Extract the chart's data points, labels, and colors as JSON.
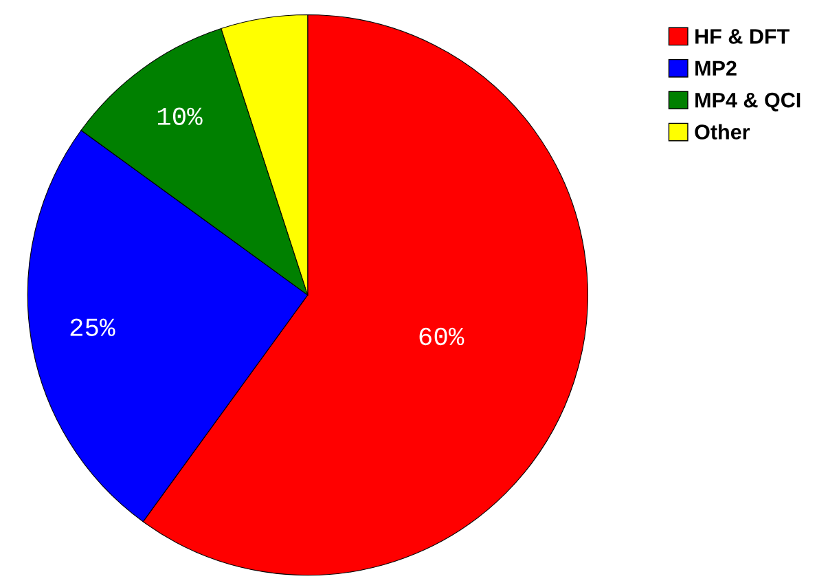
{
  "chart_data": {
    "type": "pie",
    "categories": [
      "HF & DFT",
      "MP2",
      "MP4 & QCI",
      "Other"
    ],
    "values": [
      60,
      25,
      10,
      5
    ],
    "colors": [
      "#ff0000",
      "#0000ff",
      "#008000",
      "#ffff00"
    ],
    "value_labels": [
      "60%",
      "25%",
      "10%",
      null
    ],
    "legend": "top right"
  }
}
